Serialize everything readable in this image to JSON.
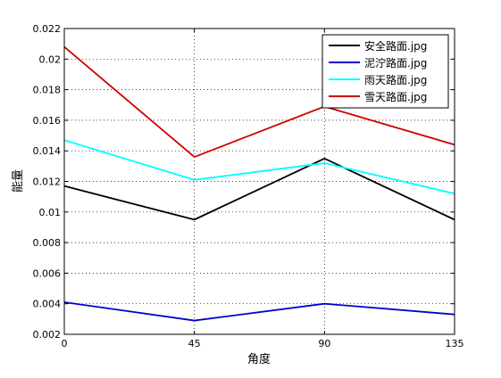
{
  "chart_data": {
    "type": "line",
    "title": "",
    "xlabel": "角度",
    "ylabel": "能量",
    "x": [
      0,
      45,
      90,
      135
    ],
    "xlim": [
      0,
      135
    ],
    "ylim": [
      0.002,
      0.022
    ],
    "xticks": [
      "0",
      "45",
      "90",
      "135"
    ],
    "yticks": [
      "0.002",
      "0.004",
      "0.006",
      "0.008",
      "0.01",
      "0.012",
      "0.014",
      "0.016",
      "0.018",
      "0.02",
      "0.022"
    ],
    "grid": true,
    "legend_position": "top-right",
    "series": [
      {
        "name": "安全路面.jpg",
        "color": "#000000",
        "values": [
          0.0117,
          0.0095,
          0.0135,
          0.0095
        ]
      },
      {
        "name": "泥泞路面.jpg",
        "color": "#0000cc",
        "values": [
          0.0041,
          0.0029,
          0.004,
          0.0033
        ]
      },
      {
        "name": "雨天路面.jpg",
        "color": "#00ffff",
        "values": [
          0.0147,
          0.0121,
          0.0132,
          0.0112
        ]
      },
      {
        "name": "雪天路面.jpg",
        "color": "#cc0000",
        "values": [
          0.0208,
          0.0136,
          0.0169,
          0.0144
        ]
      }
    ]
  }
}
